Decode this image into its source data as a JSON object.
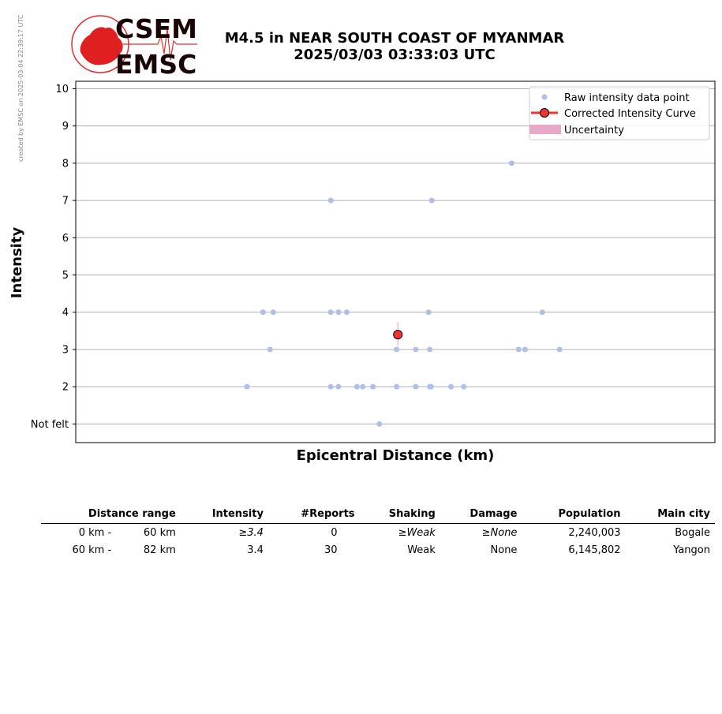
{
  "watermark": "created by EMSC on 2025-03-04 22:39:17 UTC",
  "logo": {
    "top_text": "CSEM",
    "bottom_text": "EMSC"
  },
  "header": {
    "line1": "M4.5 in NEAR SOUTH COAST OF MYANMAR",
    "line2": "2025/03/03 03:33:03 UTC"
  },
  "chart_data": {
    "type": "scatter",
    "xlabel": "Epicentral Distance (km)",
    "ylabel": "Intensity",
    "ylim": [
      0.5,
      10.2
    ],
    "yticks": [
      1,
      2,
      3,
      4,
      5,
      6,
      7,
      8,
      9,
      10
    ],
    "ytick_labels": [
      "Not felt",
      "2",
      "3",
      "4",
      "5",
      "6",
      "7",
      "8",
      "9",
      "10"
    ],
    "x_tick_labels_shown": false,
    "xlim": [
      0,
      100
    ],
    "grid": "horizontal",
    "legend_position": "top-right",
    "legend": [
      {
        "label": "Raw intensity data point",
        "kind": "raw"
      },
      {
        "label": "Corrected Intensity Curve",
        "kind": "curve"
      },
      {
        "label": "Uncertainty",
        "kind": "uncertainty"
      }
    ],
    "raw_points": [
      {
        "x": 26.8,
        "y": 2
      },
      {
        "x": 29.3,
        "y": 4
      },
      {
        "x": 30.4,
        "y": 3
      },
      {
        "x": 30.9,
        "y": 4
      },
      {
        "x": 39.9,
        "y": 7
      },
      {
        "x": 39.9,
        "y": 4
      },
      {
        "x": 39.9,
        "y": 2
      },
      {
        "x": 41.1,
        "y": 4
      },
      {
        "x": 41.1,
        "y": 2
      },
      {
        "x": 42.4,
        "y": 4
      },
      {
        "x": 44.0,
        "y": 2
      },
      {
        "x": 44.9,
        "y": 2
      },
      {
        "x": 46.5,
        "y": 2
      },
      {
        "x": 47.5,
        "y": 1
      },
      {
        "x": 50.2,
        "y": 3
      },
      {
        "x": 50.2,
        "y": 2
      },
      {
        "x": 53.2,
        "y": 3
      },
      {
        "x": 53.2,
        "y": 2
      },
      {
        "x": 55.2,
        "y": 4
      },
      {
        "x": 55.4,
        "y": 3
      },
      {
        "x": 55.4,
        "y": 2
      },
      {
        "x": 55.6,
        "y": 2
      },
      {
        "x": 55.7,
        "y": 7
      },
      {
        "x": 58.7,
        "y": 2
      },
      {
        "x": 60.7,
        "y": 2
      },
      {
        "x": 68.2,
        "y": 8
      },
      {
        "x": 69.3,
        "y": 3
      },
      {
        "x": 70.3,
        "y": 3
      },
      {
        "x": 73.0,
        "y": 4
      },
      {
        "x": 75.7,
        "y": 3
      }
    ],
    "corrected": {
      "x": 50.4,
      "y": 3.4,
      "y_low": 3.1,
      "y_high": 3.73
    },
    "colors": {
      "raw": "#b0bfe6",
      "curve": "#f03333",
      "uncertainty": "#e8a8c8",
      "grid": "#b0b0b0"
    }
  },
  "table": {
    "headers": [
      "Distance range",
      "Intensity",
      "#Reports",
      "Shaking",
      "Damage",
      "Population",
      "Main city"
    ],
    "rows": [
      {
        "dist_from": "0 km -",
        "dist_to": "60 km",
        "intensity": "≥3.4",
        "reports": "0",
        "shaking": "≥Weak",
        "damage": "≥None",
        "population": "2,240,003",
        "city": "Bogale"
      },
      {
        "dist_from": "60 km -",
        "dist_to": "82 km",
        "intensity": "3.4",
        "reports": "30",
        "shaking": "Weak",
        "damage": "None",
        "population": "6,145,802",
        "city": "Yangon"
      }
    ]
  }
}
